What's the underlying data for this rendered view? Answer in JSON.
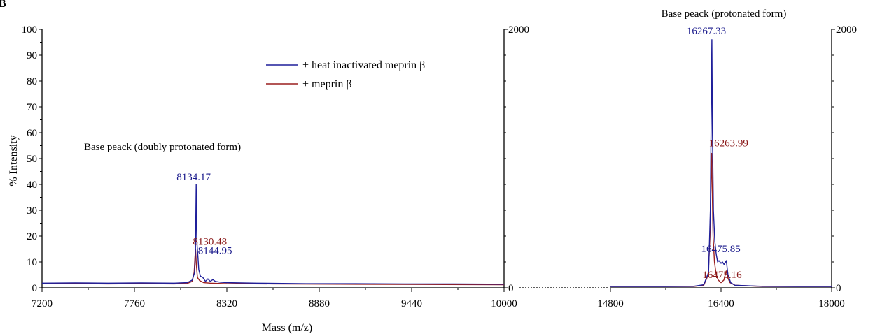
{
  "panel_label": "B",
  "colors": {
    "series_blue": "#1f1f9a",
    "series_red": "#9a1f1f",
    "axis": "#000000",
    "label_blue": "#1a1a8c",
    "label_red": "#8b1a1a"
  },
  "chart_data": {
    "type": "line",
    "xlabel": "Mass (m/z)",
    "ylabel": "% Intensity",
    "legend": {
      "placement": "top-center",
      "entries": [
        "+ heat inactivated meprin β",
        "+ meprin β"
      ]
    },
    "grid": false,
    "panels": [
      {
        "title": "Base peack (doubly protonated form)",
        "xlim": [
          7200,
          10000
        ],
        "ylim": [
          0,
          100
        ],
        "right_axis_ticks": [
          "2000",
          "0"
        ],
        "xticks": [
          "7200",
          "7760",
          "8320",
          "8880",
          "9440",
          "10000"
        ],
        "yticks": [
          "0",
          "10",
          "20",
          "30",
          "40",
          "50",
          "60",
          "70",
          "80",
          "90",
          "100"
        ],
        "series": [
          {
            "name": "+ heat inactivated meprin β",
            "points": [
              [
                7200,
                1.8
              ],
              [
                7400,
                1.9
              ],
              [
                7600,
                1.8
              ],
              [
                7800,
                1.9
              ],
              [
                8000,
                1.8
              ],
              [
                8080,
                2.0
              ],
              [
                8110,
                3.0
              ],
              [
                8125,
                6.0
              ],
              [
                8130,
                15.0
              ],
              [
                8134.17,
                40.0
              ],
              [
                8138,
                18.0
              ],
              [
                8144.95,
                12.0
              ],
              [
                8150,
                7.0
              ],
              [
                8160,
                4.5
              ],
              [
                8175,
                4.0
              ],
              [
                8190,
                2.5
              ],
              [
                8205,
                3.5
              ],
              [
                8220,
                2.5
              ],
              [
                8235,
                3.2
              ],
              [
                8250,
                2.5
              ],
              [
                8280,
                2.2
              ],
              [
                8320,
                2.0
              ],
              [
                8500,
                1.8
              ],
              [
                8800,
                1.6
              ],
              [
                9100,
                1.6
              ],
              [
                9400,
                1.5
              ],
              [
                9700,
                1.5
              ],
              [
                10000,
                1.4
              ]
            ]
          },
          {
            "name": "+ meprin β",
            "points": [
              [
                7200,
                1.6
              ],
              [
                7400,
                1.6
              ],
              [
                7600,
                1.5
              ],
              [
                7800,
                1.6
              ],
              [
                8000,
                1.5
              ],
              [
                8080,
                1.7
              ],
              [
                8110,
                2.5
              ],
              [
                8122,
                6.0
              ],
              [
                8127,
                12.0
              ],
              [
                8130.48,
                15.0
              ],
              [
                8135,
                9.0
              ],
              [
                8142,
                4.0
              ],
              [
                8155,
                2.8
              ],
              [
                8180,
                2.0
              ],
              [
                8220,
                1.8
              ],
              [
                8320,
                1.6
              ],
              [
                8600,
                1.5
              ],
              [
                9000,
                1.4
              ],
              [
                9500,
                1.3
              ],
              [
                10000,
                1.2
              ]
            ]
          }
        ],
        "annotations": [
          {
            "text": "8134.17",
            "x": 8134.17,
            "y": 40.0,
            "series": "+ heat inactivated meprin β"
          },
          {
            "text": "8130.48",
            "x": 8130.48,
            "y": 15.0,
            "series": "+ meprin β"
          },
          {
            "text": "8144.95",
            "x": 8144.95,
            "y": 12.0,
            "series": "+ heat inactivated meprin β"
          }
        ]
      },
      {
        "title": "Base peack (protonated form)",
        "xlim": [
          14800,
          18000
        ],
        "ylim": [
          0,
          100
        ],
        "right_axis_ticks": [
          "2000",
          "0"
        ],
        "xticks": [
          "14800",
          "16400",
          "18000"
        ],
        "series": [
          {
            "name": "+ heat inactivated meprin β",
            "points": [
              [
                14800,
                0.5
              ],
              [
                15600,
                0.5
              ],
              [
                16000,
                0.6
              ],
              [
                16150,
                1.2
              ],
              [
                16220,
                6.0
              ],
              [
                16245,
                30.0
              ],
              [
                16258,
                70.0
              ],
              [
                16267.33,
                96.0
              ],
              [
                16275,
                60.0
              ],
              [
                16290,
                30.0
              ],
              [
                16310,
                18.0
              ],
              [
                16330,
                13.0
              ],
              [
                16350,
                10.0
              ],
              [
                16370,
                10.5
              ],
              [
                16400,
                9.5
              ],
              [
                16420,
                10.0
              ],
              [
                16445,
                9.0
              ],
              [
                16475.85,
                10.5
              ],
              [
                16500,
                5.0
              ],
              [
                16540,
                2.0
              ],
              [
                16600,
                1.0
              ],
              [
                17000,
                0.6
              ],
              [
                17500,
                0.5
              ],
              [
                18000,
                0.5
              ]
            ]
          },
          {
            "name": "+ meprin β",
            "points": [
              [
                14800,
                0.5
              ],
              [
                15600,
                0.5
              ],
              [
                16000,
                0.5
              ],
              [
                16150,
                1.0
              ],
              [
                16215,
                5.0
              ],
              [
                16240,
                20.0
              ],
              [
                16255,
                42.0
              ],
              [
                16263.99,
                52.0
              ],
              [
                16272,
                38.0
              ],
              [
                16285,
                20.0
              ],
              [
                16305,
                10.0
              ],
              [
                16330,
                5.0
              ],
              [
                16360,
                3.0
              ],
              [
                16400,
                2.0
              ],
              [
                16440,
                3.0
              ],
              [
                16475.16,
                6.5
              ],
              [
                16495,
                4.0
              ],
              [
                16530,
                2.0
              ],
              [
                16600,
                1.0
              ],
              [
                17000,
                0.5
              ],
              [
                18000,
                0.5
              ]
            ]
          }
        ],
        "annotations": [
          {
            "text": "16267.33",
            "x": 16267.33,
            "y": 96.0,
            "series": "+ heat inactivated meprin β"
          },
          {
            "text": "16263.99",
            "x": 16263.99,
            "y": 52.0,
            "series": "+ meprin β"
          },
          {
            "text": "16475.85",
            "x": 16475.85,
            "y": 10.5,
            "series": "+ heat inactivated meprin β"
          },
          {
            "text": "16475.16",
            "x": 16475.16,
            "y": 6.5,
            "series": "+ meprin β"
          }
        ]
      }
    ]
  }
}
